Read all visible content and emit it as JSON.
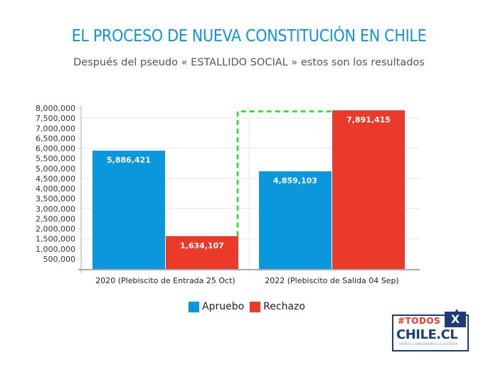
{
  "header": {
    "title": "EL PROCESO DE NUEVA CONSTITUCIÓN EN CHILE",
    "subtitle": "Después del pseudo « ESTALLIDO SOCIAL » estos son los resultados"
  },
  "colors": {
    "apruebo": "#0a97dc",
    "rechazo": "#eb3a2a",
    "title": "#0b96de",
    "dashed_connector": "#18e318",
    "gridline": "#eeeeee",
    "axis": "#aaaaaa"
  },
  "chart_data": {
    "type": "bar",
    "title": "EL PROCESO DE NUEVA CONSTITUCIÓN EN CHILE",
    "subtitle": "Después del pseudo « ESTALLIDO SOCIAL » estos son los resultados",
    "categories": [
      "2020 (Plebiscito de Entrada 25 Oct)",
      "2022 (Plebiscito de Salida 04 Sep)"
    ],
    "series": [
      {
        "name": "Apruebo",
        "values": [
          5886421,
          4859103
        ],
        "labels": [
          "5,886,421",
          "4,859,103"
        ]
      },
      {
        "name": "Rechazo",
        "values": [
          1634107,
          7891415
        ],
        "labels": [
          "1,634,107",
          "7,891,415"
        ]
      }
    ],
    "xlabel": "",
    "ylabel": "",
    "ylim": [
      0,
      8000000
    ],
    "ytick_step": 500000,
    "grid_step": 1500000,
    "yticks": [
      "500,000",
      "1,000,000",
      "1,500,000",
      "2,000,000",
      "2,500,000",
      "3,000,000",
      "3,500,000",
      "4,000,000",
      "4,500,000",
      "5,000,000",
      "5,500,000",
      "6,000,000",
      "6,500,000",
      "7,000,000",
      "7,500,000",
      "8,000,000"
    ],
    "legend": {
      "position": "bottom-center",
      "entries": [
        "Apruebo",
        "Rechazo"
      ]
    },
    "annotation": "dashed green connector from top of 2020 Rechazo bar to top of 2022 Rechazo bar"
  },
  "legend": {
    "items": [
      {
        "label": "Apruebo"
      },
      {
        "label": "Rechazo"
      }
    ]
  },
  "logo": {
    "hashtag": "#TODOS",
    "mark": "X",
    "name": "CHILE.CL",
    "tagline": "UNIDOS CAMBIAREMOS LA HISTORIA"
  }
}
